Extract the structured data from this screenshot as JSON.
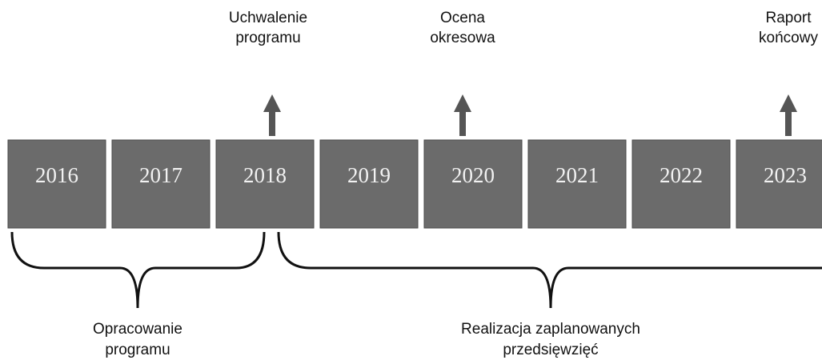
{
  "years": [
    "2016",
    "2017",
    "2018",
    "2019",
    "2020",
    "2021",
    "2022",
    "2023"
  ],
  "milestones": [
    {
      "lines": [
        "Uchwalenie",
        "programu"
      ]
    },
    {
      "lines": [
        "Ocena",
        "okresowa"
      ]
    },
    {
      "lines": [
        "Raport",
        "końcowy"
      ]
    }
  ],
  "phases": [
    {
      "lines": [
        "Opracowanie",
        "programu"
      ]
    },
    {
      "lines": [
        "Realizacja  zaplanowanych",
        "przedsięwzięć"
      ]
    }
  ]
}
